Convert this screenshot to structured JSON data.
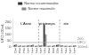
{
  "chart_data": {
    "type": "bar",
    "categories": [
      "3\n0",
      "3\n0",
      "4\n1",
      "1\n2",
      "1\n2",
      "1\n2",
      "1\n2",
      "2\n2",
      "3\n0",
      "3\n0",
      "4\n0",
      "1\n2",
      "1\n2",
      "1\n2",
      "1\n2"
    ],
    "series": [
      {
        "name": "Norme recommandee",
        "color": "#333333",
        "values": [
          15,
          8,
          8,
          10,
          12,
          8,
          10,
          180,
          8,
          8,
          15,
          10,
          8,
          8,
          10
        ]
      },
      {
        "name": "Norme maximale",
        "color": "#888888",
        "values": [
          20,
          12,
          10,
          15,
          18,
          10,
          15,
          100,
          10,
          12,
          20,
          12,
          10,
          10,
          12
        ]
      }
    ],
    "ylabel": "UFC/100mL",
    "ylim": [
      0,
      220
    ],
    "yticks": [
      0,
      50,
      100,
      150,
      200
    ],
    "grid": false,
    "legend": "top",
    "hline": {
      "value": 35,
      "color": "#aaaaaa",
      "line_style": "solid"
    },
    "vlines": {
      "x": [
        5.5,
        10.5
      ],
      "color": "gray",
      "line_style": "dashed"
    },
    "annotations": [
      {
        "text": "L'Anse",
        "x": 2.5,
        "y": 198
      },
      {
        "text": "printemps",
        "x": 7.5,
        "y": 198
      },
      {
        "text": "ete",
        "x": 12.0,
        "y": 198
      },
      {
        "text": "200\nUFC/\n100mL",
        "x": 14.7,
        "y": 33
      }
    ]
  }
}
